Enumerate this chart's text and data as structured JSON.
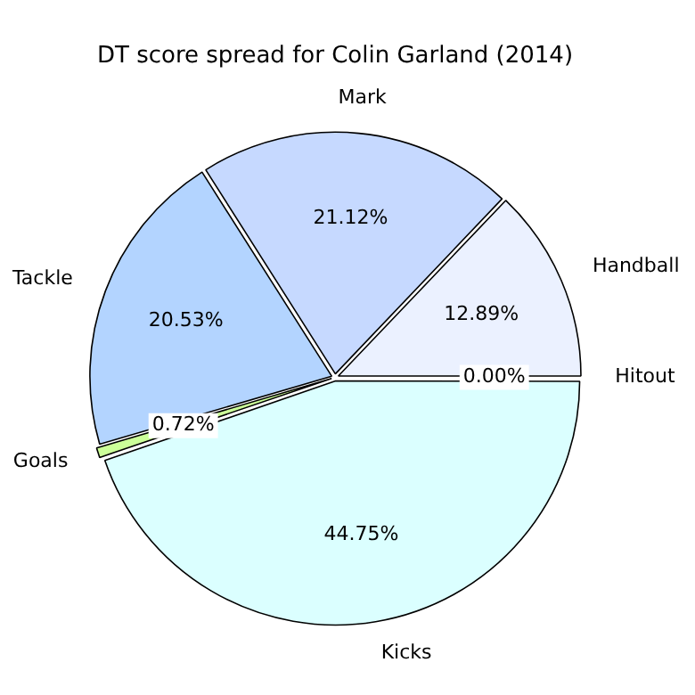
{
  "chart_data": {
    "type": "pie",
    "title": "DT score spread for Colin Garland (2014)",
    "categories": [
      "Hitout",
      "Handball",
      "Mark",
      "Tackle",
      "Goals",
      "Kicks"
    ],
    "values": [
      0.0,
      12.89,
      21.12,
      20.53,
      0.72,
      44.75
    ],
    "value_labels": [
      "0.00%",
      "12.89%",
      "21.12%",
      "20.53%",
      "0.72%",
      "44.75%"
    ],
    "colors": [
      "#f5f8ff",
      "#ebf1ff",
      "#c6d9ff",
      "#b3d4ff",
      "#ccff99",
      "#dbffff"
    ],
    "legend": false
  }
}
